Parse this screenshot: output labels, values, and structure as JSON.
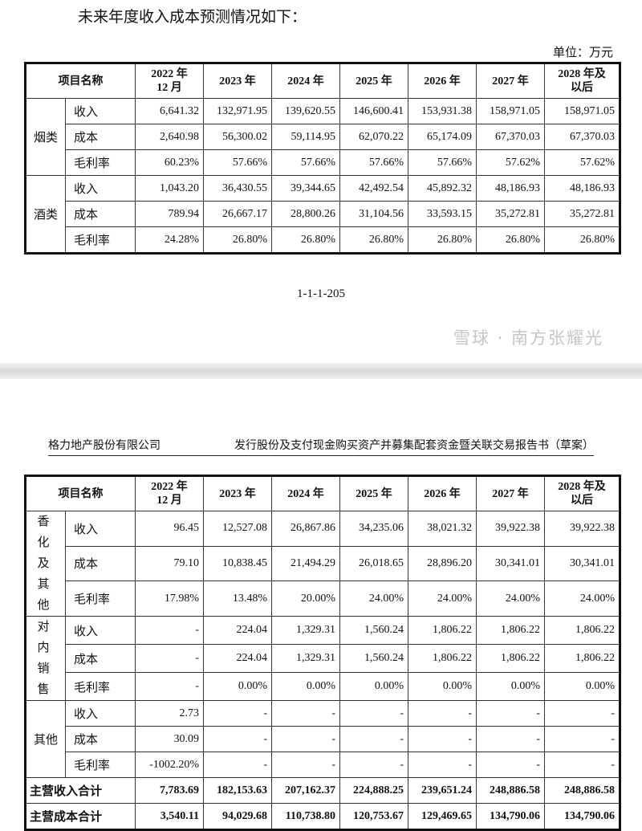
{
  "intro": "未来年度收入成本预测情况如下：",
  "unit": "单位：万元",
  "headers": [
    "项目名称",
    "2022 年\n12 月",
    "2023 年",
    "2024 年",
    "2025 年",
    "2026 年",
    "2027 年",
    "2028 年及\n以后"
  ],
  "table1": [
    {
      "group": "烟类",
      "rows": [
        {
          "item": "收入",
          "values": [
            "6,641.32",
            "132,971.95",
            "139,620.55",
            "146,600.41",
            "153,931.38",
            "158,971.05",
            "158,971.05"
          ]
        },
        {
          "item": "成本",
          "values": [
            "2,640.98",
            "56,300.02",
            "59,114.95",
            "62,070.22",
            "65,174.09",
            "67,370.03",
            "67,370.03"
          ]
        },
        {
          "item": "毛利率",
          "values": [
            "60.23%",
            "57.66%",
            "57.66%",
            "57.66%",
            "57.66%",
            "57.62%",
            "57.62%"
          ]
        }
      ]
    },
    {
      "group": "酒类",
      "rows": [
        {
          "item": "收入",
          "values": [
            "1,043.20",
            "36,430.55",
            "39,344.65",
            "42,492.54",
            "45,892.32",
            "48,186.93",
            "48,186.93"
          ]
        },
        {
          "item": "成本",
          "values": [
            "789.94",
            "26,667.17",
            "28,800.26",
            "31,104.56",
            "33,593.15",
            "35,272.81",
            "35,272.81"
          ]
        },
        {
          "item": "毛利率",
          "values": [
            "24.28%",
            "26.80%",
            "26.80%",
            "26.80%",
            "26.80%",
            "26.80%",
            "26.80%"
          ]
        }
      ]
    }
  ],
  "page_number": "1-1-1-205",
  "doc_header": {
    "company": "格力地产股份有限公司",
    "title": "发行股份及支付现金购买资产并募集配套资金暨关联交易报告书（草案）"
  },
  "table2": [
    {
      "group": "香化及其他",
      "rows": [
        {
          "item": "收入",
          "values": [
            "96.45",
            "12,527.08",
            "26,867.86",
            "34,235.06",
            "38,021.32",
            "39,922.38",
            "39,922.38"
          ]
        },
        {
          "item": "成本",
          "values": [
            "79.10",
            "10,838.45",
            "21,494.29",
            "26,018.65",
            "28,896.20",
            "30,341.01",
            "30,341.01"
          ]
        },
        {
          "item": "毛利率",
          "values": [
            "17.98%",
            "13.48%",
            "20.00%",
            "24.00%",
            "24.00%",
            "24.00%",
            "24.00%"
          ]
        }
      ]
    },
    {
      "group": "对内销售",
      "rows": [
        {
          "item": "收入",
          "values": [
            "-",
            "224.04",
            "1,329.31",
            "1,560.24",
            "1,806.22",
            "1,806.22",
            "1,806.22"
          ]
        },
        {
          "item": "成本",
          "values": [
            "-",
            "224.04",
            "1,329.31",
            "1,560.24",
            "1,806.22",
            "1,806.22",
            "1,806.22"
          ]
        },
        {
          "item": "毛利率",
          "values": [
            "-",
            "0.00%",
            "0.00%",
            "0.00%",
            "0.00%",
            "0.00%",
            "0.00%"
          ]
        }
      ]
    },
    {
      "group": "其他",
      "rows": [
        {
          "item": "收入",
          "values": [
            "2.73",
            "-",
            "-",
            "-",
            "-",
            "-",
            "-"
          ]
        },
        {
          "item": "成本",
          "values": [
            "30.09",
            "-",
            "-",
            "-",
            "-",
            "-",
            "-"
          ]
        },
        {
          "item": "毛利率",
          "values": [
            "-1002.20%",
            "-",
            "-",
            "-",
            "-",
            "-",
            "-"
          ]
        }
      ]
    }
  ],
  "totals": [
    {
      "item": "主营收入合计",
      "values": [
        "7,783.69",
        "182,153.63",
        "207,162.37",
        "224,888.25",
        "239,651.24",
        "248,886.58",
        "248,886.58"
      ]
    },
    {
      "item": "主营成本合计",
      "values": [
        "3,540.11",
        "94,029.68",
        "110,738.80",
        "120,753.67",
        "129,469.65",
        "134,790.06",
        "134,790.06"
      ]
    }
  ],
  "watermark": "雪球 · 南方张耀光"
}
